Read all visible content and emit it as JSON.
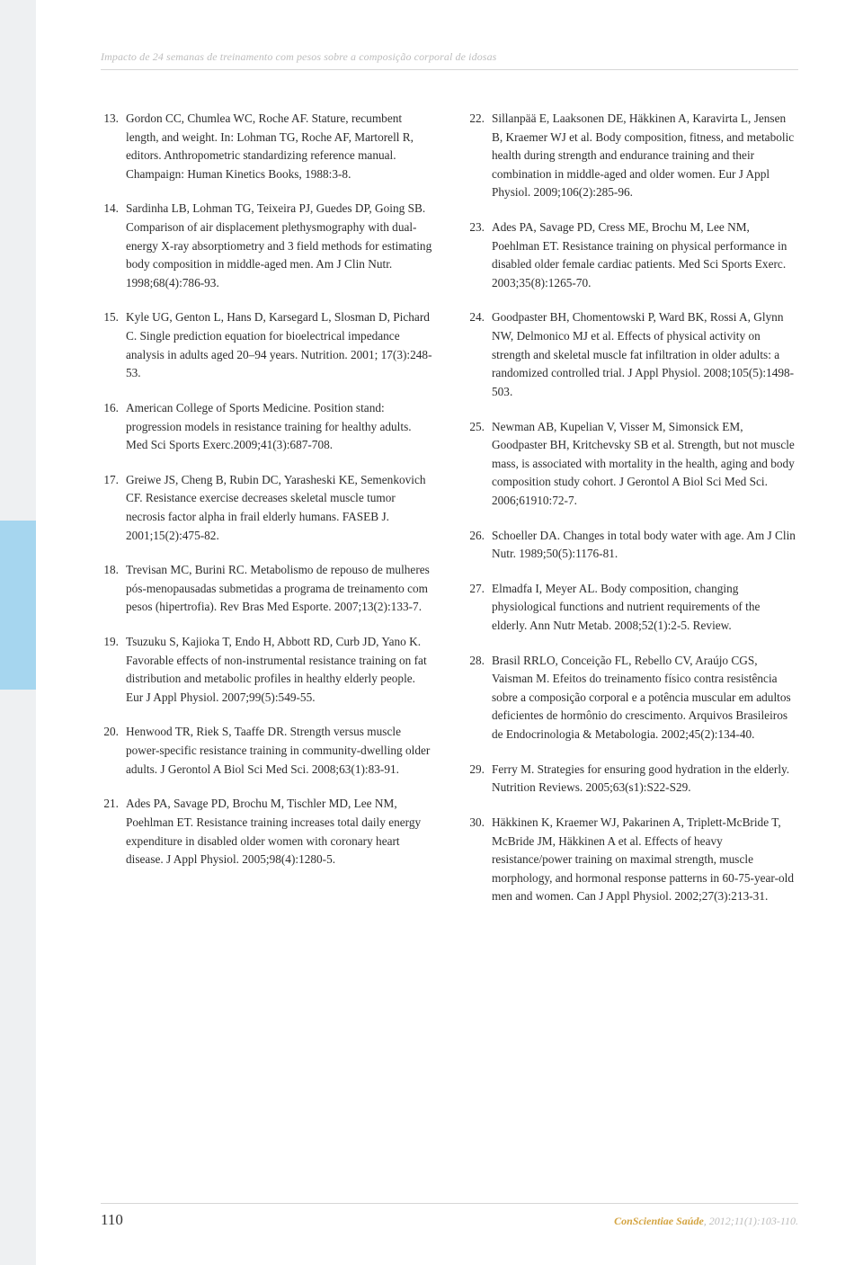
{
  "header": {
    "running_title": "Impacto de 24 semanas de treinamento com pesos sobre a composição corporal de idosas"
  },
  "references_left": [
    {
      "num": "13.",
      "text": "Gordon CC, Chumlea WC, Roche AF. Stature, recumbent length, and weight. In: Lohman TG, Roche AF, Martorell R, editors. Anthropometric standardizing reference manual. Champaign: Human Kinetics Books, 1988:3-8."
    },
    {
      "num": "14.",
      "text": "Sardinha LB, Lohman TG, Teixeira PJ, Guedes DP, Going SB. Comparison of air displacement plethysmography with dual-energy X-ray absorptiometry and 3 field methods for estimating body composition in middle-aged men. Am J Clin Nutr. 1998;68(4):786-93."
    },
    {
      "num": "15.",
      "text": "Kyle UG, Genton L, Hans D, Karsegard L, Slosman D, Pichard C. Single prediction equation for bioelectrical impedance analysis in adults aged 20–94 years. Nutrition. 2001; 17(3):248-53."
    },
    {
      "num": "16.",
      "text": "American College of Sports Medicine. Position stand: progression models in resistance training for healthy adults. Med Sci Sports Exerc.2009;41(3):687-708."
    },
    {
      "num": "17.",
      "text": "Greiwe JS, Cheng B, Rubin DC, Yarasheski KE, Semenkovich CF. Resistance exercise decreases skeletal muscle tumor necrosis factor alpha in frail elderly humans. FASEB J. 2001;15(2):475-82."
    },
    {
      "num": "18.",
      "text": "Trevisan MC, Burini RC. Metabolismo de repouso de mulheres pós-menopausadas submetidas a programa de treinamento com pesos (hipertrofia). Rev Bras Med Esporte. 2007;13(2):133-7."
    },
    {
      "num": "19.",
      "text": "Tsuzuku S, Kajioka T, Endo H, Abbott RD, Curb JD, Yano K. Favorable effects of non-instrumental resistance training on fat distribution and metabolic profiles in healthy elderly people. Eur J Appl Physiol. 2007;99(5):549-55."
    },
    {
      "num": "20.",
      "text": "Henwood TR, Riek S, Taaffe DR. Strength versus muscle power-specific resistance training in community-dwelling older adults. J Gerontol A Biol Sci Med Sci. 2008;63(1):83-91."
    },
    {
      "num": "21.",
      "text": "Ades PA, Savage PD, Brochu M, Tischler MD, Lee NM, Poehlman ET. Resistance training increases total daily energy expenditure in disabled older women with coronary heart disease. J Appl Physiol. 2005;98(4):1280-5."
    }
  ],
  "references_right": [
    {
      "num": "22.",
      "text": "Sillanpää E, Laaksonen DE, Häkkinen A, Karavirta L, Jensen B, Kraemer WJ et al. Body composition, fitness, and metabolic health during strength and endurance training and their combination in middle-aged and older women. Eur J Appl Physiol. 2009;106(2):285-96."
    },
    {
      "num": "23.",
      "text": "Ades PA, Savage PD, Cress ME, Brochu M, Lee NM, Poehlman ET. Resistance training on physical performance in disabled older female cardiac patients. Med Sci Sports Exerc. 2003;35(8):1265-70."
    },
    {
      "num": "24.",
      "text": "Goodpaster BH, Chomentowski P, Ward BK, Rossi A, Glynn NW, Delmonico MJ et al. Effects of physical activity on strength and skeletal muscle fat infiltration in older adults: a randomized controlled trial. J Appl Physiol. 2008;105(5):1498-503."
    },
    {
      "num": "25.",
      "text": "Newman AB, Kupelian V, Visser M, Simonsick EM, Goodpaster BH, Kritchevsky SB et al. Strength, but not muscle mass, is associated with mortality in the health, aging and body composition study cohort. J Gerontol A Biol Sci Med Sci. 2006;61910:72-7."
    },
    {
      "num": "26.",
      "text": "Schoeller DA. Changes in total body water with age. Am J Clin Nutr. 1989;50(5):1176-81."
    },
    {
      "num": "27.",
      "text": "Elmadfa I, Meyer AL. Body composition, changing physiological functions and nutrient requirements of the elderly. Ann Nutr Metab. 2008;52(1):2-5. Review."
    },
    {
      "num": "28.",
      "text": "Brasil RRLO, Conceição FL, Rebello CV, Araújo CGS, Vaisman M. Efeitos do treinamento físico contra resistência sobre a composição corporal e a potência muscular em adultos deficientes de hormônio do crescimento. Arquivos Brasileiros de Endocrinologia & Metabologia. 2002;45(2):134-40."
    },
    {
      "num": "29.",
      "text": "Ferry M. Strategies for ensuring good hydration in the elderly. Nutrition Reviews. 2005;63(s1):S22-S29."
    },
    {
      "num": "30.",
      "text": "Häkkinen K, Kraemer WJ, Pakarinen A, Triplett-McBride T, McBride JM, Häkkinen A et al. Effects of heavy resistance/power training on maximal strength, muscle morphology, and hormonal response patterns in 60-75-year-old men and women. Can J Appl Physiol. 2002;27(3):213-31."
    }
  ],
  "footer": {
    "page_number": "110",
    "journal_name": "ConScientiae Saúde",
    "citation_tail": ", 2012;11(1):103-110."
  },
  "colors": {
    "page_bg": "#ffffff",
    "outer_bg": "#eef0f2",
    "tab_bg": "#a6d6ef",
    "text": "#2c2c2c",
    "muted": "#bdbdbd",
    "accent": "#d4a441",
    "rule": "#d6d6d6"
  }
}
